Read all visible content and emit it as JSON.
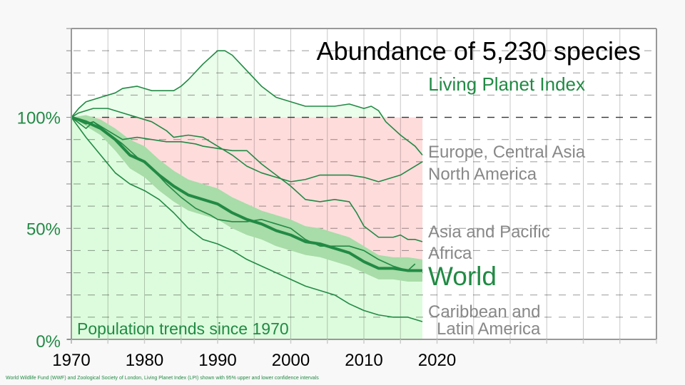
{
  "chart_data": {
    "type": "line",
    "title": "Abundance of 5,230 species",
    "subtitle": "Living Planet Index",
    "inner_label": "Population trends since 1970",
    "footnote": "World Wildlife Fund (WWF) and Zoological Society of London, Living Planet Index (LPI) shown with 95% upper and lower confidence intervals",
    "xlabel": "",
    "ylabel": "",
    "xlim": [
      1970,
      2050
    ],
    "ylim": [
      0,
      140
    ],
    "x_ticks": [
      1970,
      1980,
      1990,
      2000,
      2010,
      2020
    ],
    "x_tick_labels": [
      "1970",
      "1980",
      "1990",
      "2000",
      "2010",
      "2020"
    ],
    "y_ticks": [
      0,
      50,
      100
    ],
    "y_tick_labels": [
      "0%",
      "50%",
      "100%"
    ],
    "grid": true,
    "reference_line": 100,
    "colors": {
      "line": "#218a44",
      "ci_band": "#a8dca8",
      "decline_area": "#ffdcdc",
      "below_area": "#ddfcdd",
      "above_area": "#ebfdeb",
      "axis_label": "#218a44",
      "region_label": "#888888",
      "title": "#000000"
    },
    "world": {
      "name": "World",
      "x": [
        1970,
        1972,
        1974,
        1976,
        1978,
        1980,
        1982,
        1984,
        1986,
        1988,
        1990,
        1992,
        1994,
        1996,
        1998,
        2000,
        2002,
        2004,
        2006,
        2008,
        2010,
        2012,
        2014,
        2016,
        2018
      ],
      "values": [
        100,
        98,
        95,
        90,
        83,
        80,
        74,
        69,
        65,
        63,
        61,
        57,
        54,
        52,
        49,
        47,
        44,
        43,
        41,
        39,
        35,
        32,
        32,
        31,
        31
      ],
      "upper": [
        100,
        101,
        99,
        95,
        90,
        87,
        81,
        76,
        72,
        70,
        68,
        64,
        61,
        58,
        56,
        54,
        51,
        50,
        48,
        46,
        42,
        38,
        37,
        37,
        36
      ],
      "lower": [
        100,
        96,
        92,
        85,
        77,
        73,
        67,
        62,
        58,
        56,
        54,
        50,
        47,
        45,
        42,
        40,
        38,
        37,
        35,
        33,
        30,
        27,
        27,
        26,
        26
      ]
    },
    "series": [
      {
        "name": "Europe, Central Asia",
        "x": [
          1970,
          1971,
          1972,
          1974,
          1976,
          1977,
          1979,
          1980,
          1981,
          1982,
          1984,
          1985,
          1986,
          1988,
          1990,
          1991,
          1992,
          1994,
          1996,
          1998,
          2000,
          2002,
          2004,
          2006,
          2008,
          2009,
          2010,
          2011,
          2012,
          2013,
          2015,
          2017,
          2018
        ],
        "values": [
          100,
          104,
          107,
          109,
          111,
          113,
          114,
          113,
          112,
          112,
          112,
          114,
          117,
          124,
          130,
          130,
          128,
          121,
          114,
          109,
          107,
          105,
          105,
          105,
          106,
          105,
          104,
          105,
          103,
          98,
          92,
          87,
          83
        ]
      },
      {
        "name": "North America",
        "x": [
          1970,
          1971,
          1972,
          1973,
          1975,
          1977,
          1979,
          1981,
          1983,
          1984,
          1986,
          1988,
          1990,
          1992,
          1994,
          1996,
          1998,
          2000,
          2002,
          2004,
          2006,
          2008,
          2010,
          2012,
          2013,
          2015,
          2018
        ],
        "values": [
          100,
          102,
          103,
          104,
          104,
          102,
          100,
          98,
          94,
          91,
          92,
          91,
          87,
          83,
          78,
          75,
          73,
          71,
          72,
          74,
          74,
          74,
          73,
          71,
          72,
          74,
          80
        ]
      },
      {
        "name": "Asia and Pacific",
        "x": [
          1970,
          1972,
          1973,
          1975,
          1977,
          1979,
          1981,
          1983,
          1985,
          1987,
          1988,
          1990,
          1992,
          1994,
          1996,
          1998,
          2000,
          2002,
          2004,
          2006,
          2008,
          2009,
          2010,
          2012,
          2014,
          2015,
          2016,
          2017,
          2018
        ],
        "values": [
          100,
          97,
          98,
          94,
          90,
          91,
          90,
          89,
          89,
          88,
          87,
          86,
          85,
          85,
          79,
          74,
          69,
          63,
          62,
          63,
          62,
          57,
          51,
          46,
          46,
          47,
          45,
          45,
          44
        ]
      },
      {
        "name": "Africa",
        "x": [
          1970,
          1972,
          1973,
          1975,
          1977,
          1979,
          1981,
          1983,
          1985,
          1987,
          1989,
          1990,
          1992,
          1994,
          1996,
          1998,
          2000,
          2002,
          2004,
          2006,
          2008,
          2010,
          2012,
          2014,
          2016,
          2017
        ],
        "values": [
          100,
          95,
          98,
          93,
          88,
          82,
          77,
          70,
          64,
          59,
          56,
          54,
          53,
          53,
          54,
          52,
          50,
          45,
          42,
          42,
          42,
          40,
          36,
          33,
          31,
          34
        ]
      },
      {
        "name": "Caribbean and Latin America",
        "x": [
          1970,
          1972,
          1974,
          1976,
          1978,
          1980,
          1982,
          1984,
          1986,
          1988,
          1990,
          1992,
          1994,
          1996,
          1998,
          2000,
          2002,
          2004,
          2006,
          2008,
          2010,
          2012,
          2014,
          2016,
          2018
        ],
        "values": [
          100,
          91,
          83,
          75,
          70,
          67,
          63,
          57,
          50,
          45,
          43,
          40,
          36,
          33,
          30,
          27,
          24,
          22,
          20,
          16,
          13,
          11,
          10,
          10,
          8
        ]
      }
    ],
    "labels": {
      "region_europe": "Europe, Central Asia",
      "region_north_america": "North America",
      "region_asia": "Asia and Pacific",
      "region_africa": "Africa",
      "region_world": "World",
      "region_latin_1": "Caribbean and",
      "region_latin_2": "Latin America"
    }
  }
}
